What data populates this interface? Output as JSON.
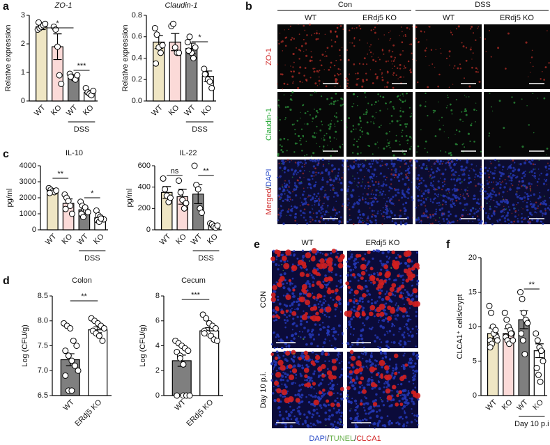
{
  "panel_labels": [
    "a",
    "b",
    "c",
    "d",
    "e",
    "f"
  ],
  "chart_data": [
    {
      "type": "bar",
      "title": "ZO-1",
      "ylabel": "Relative expression",
      "categories": [
        "WT",
        "KO",
        "WT",
        "KO"
      ],
      "group_label": "DSS",
      "colors": [
        "#efe6c4",
        "#fbdad8",
        "#7f7f7f",
        "#ffffff"
      ],
      "values": [
        2.6,
        1.9,
        0.85,
        0.3
      ],
      "errors": [
        0.1,
        0.45,
        0.07,
        0.07
      ],
      "points": [
        [
          2.5,
          2.55,
          2.6,
          2.65,
          2.7,
          2.75
        ],
        [
          2.6,
          2.5,
          1.9,
          0.9,
          0.6
        ],
        [
          0.95,
          0.85,
          0.8,
          0.75,
          0.9,
          0.85
        ],
        [
          0.45,
          0.3,
          0.25,
          0.2,
          0.35
        ]
      ],
      "annotations": [
        "*",
        "***"
      ],
      "ylim": [
        0,
        3
      ],
      "yticks": [
        0,
        1,
        2,
        3
      ]
    },
    {
      "type": "bar",
      "title": "Claudin-1",
      "ylabel": "Relative expression",
      "categories": [
        "WT",
        "KO",
        "WT",
        "KO"
      ],
      "group_label": "DSS",
      "colors": [
        "#efe6c4",
        "#fbdad8",
        "#7f7f7f",
        "#ffffff"
      ],
      "values": [
        0.55,
        0.55,
        0.49,
        0.23
      ],
      "errors": [
        0.06,
        0.08,
        0.05,
        0.05
      ],
      "points": [
        [
          0.68,
          0.62,
          0.5,
          0.45,
          0.52,
          0.35
        ],
        [
          0.7,
          0.72,
          0.5,
          0.45,
          0.45
        ],
        [
          0.55,
          0.6,
          0.45,
          0.4,
          0.5,
          0.47
        ],
        [
          0.3,
          0.25,
          0.2,
          0.18,
          0.12,
          0.25
        ]
      ],
      "annotations": [
        "*"
      ],
      "ylim": [
        0,
        0.8
      ],
      "yticks": [
        {
          "value": 0,
          "label": "0.0"
        },
        0.2,
        0.4,
        0.6,
        0.8
      ]
    },
    {
      "type": "bar",
      "title": "IL-10",
      "ylabel": "pg/ml",
      "categories": [
        "WT",
        "KO",
        "WT",
        "KO"
      ],
      "group_label": "DSS",
      "colors": [
        "#efe6c4",
        "#fbdad8",
        "#7f7f7f",
        "#ffffff"
      ],
      "values": [
        2450,
        1650,
        1250,
        750
      ],
      "errors": [
        120,
        280,
        160,
        90
      ],
      "points": [
        [
          2600,
          2500,
          2400,
          2350,
          2450,
          2300
        ],
        [
          2200,
          2000,
          1800,
          1500,
          1000,
          1300
        ],
        [
          1750,
          1500,
          1300,
          1200,
          1100,
          1000,
          800,
          1400
        ],
        [
          1200,
          900,
          800,
          700,
          650,
          600,
          500,
          700
        ]
      ],
      "annotations": [
        "**",
        "*"
      ],
      "ylim": [
        0,
        4000
      ],
      "yticks": [
        0,
        1000,
        2000,
        3000,
        4000
      ]
    },
    {
      "type": "bar",
      "title": "IL-22",
      "ylabel": "pg/ml",
      "categories": [
        "WT",
        "KO",
        "WT",
        "KO"
      ],
      "group_label": "DSS",
      "colors": [
        "#efe6c4",
        "#fbdad8",
        "#7f7f7f",
        "#ffffff"
      ],
      "values": [
        350,
        310,
        335,
        40
      ],
      "errors": [
        55,
        70,
        90,
        15
      ],
      "points": [
        [
          480,
          380,
          320,
          260,
          300
        ],
        [
          460,
          350,
          280,
          200,
          250
        ],
        [
          600,
          420,
          380,
          200,
          160
        ],
        [
          60,
          50,
          30,
          20,
          40
        ]
      ],
      "annotations": [
        "ns",
        "**"
      ],
      "ylim": [
        0,
        600
      ],
      "yticks": [
        0,
        200,
        400,
        600
      ]
    },
    {
      "type": "bar",
      "title": "Colon",
      "ylabel": "Log (CFU/g)",
      "categories": [
        "WT",
        "ERdj5 KO"
      ],
      "colors": [
        "#7f7f7f",
        "#ffffff"
      ],
      "values": [
        7.22,
        7.82
      ],
      "errors": [
        0.12,
        0.06
      ],
      "points": [
        [
          7.95,
          7.9,
          7.85,
          7.6,
          7.5,
          7.4,
          7.3,
          7.2,
          7.1,
          7.0,
          6.9,
          6.6,
          6.6
        ],
        [
          8.05,
          8.0,
          7.95,
          7.9,
          7.85,
          7.8,
          7.75,
          7.7,
          7.6
        ]
      ],
      "annotations": [
        "**"
      ],
      "ylim": [
        6.5,
        8.5
      ],
      "yticks": [
        6.5,
        {
          "value": 7,
          "label": "7.0"
        },
        7.5,
        {
          "value": 8,
          "label": "8.0"
        },
        8.5
      ]
    },
    {
      "type": "bar",
      "title": "Cecum",
      "ylabel": "Log (CFU/g)",
      "categories": [
        "WT",
        "ERdj5 KO"
      ],
      "colors": [
        "#7f7f7f",
        "#ffffff"
      ],
      "values": [
        2.8,
        5.2
      ],
      "errors": [
        0.45,
        0.25
      ],
      "points": [
        [
          4.4,
          4.2,
          4.0,
          3.8,
          3.6,
          3.5,
          3.2,
          0,
          0,
          0,
          0,
          3.0,
          2.5
        ],
        [
          6.5,
          6.2,
          5.8,
          5.6,
          5.4,
          5.2,
          5.0,
          4.8,
          4.5,
          4.4,
          5.0
        ]
      ],
      "annotations": [
        "***"
      ],
      "ylim": [
        0,
        8
      ],
      "yticks": [
        0,
        2,
        4,
        6,
        8
      ]
    },
    {
      "type": "bar",
      "ylabel": "CLCA1⁺ cells/crypt",
      "categories": [
        "WT",
        "KO",
        "WT",
        "KO"
      ],
      "group_label": "Day 10 p.i",
      "colors": [
        "#efe6c4",
        "#fbdad8",
        "#7f7f7f",
        "#ffffff"
      ],
      "values": [
        9,
        9,
        11,
        6.5
      ],
      "errors": [
        0.8,
        0.7,
        1.3,
        1.0
      ],
      "points": [
        [
          13,
          12,
          10,
          9,
          8.5,
          8,
          7.5,
          9,
          9.5,
          8,
          7
        ],
        [
          12,
          11,
          10,
          9.5,
          9,
          8.5,
          8,
          7.5,
          9,
          8
        ],
        [
          15,
          14,
          12,
          11,
          10.5,
          9,
          8,
          6
        ],
        [
          9,
          8,
          7,
          6.5,
          5,
          4,
          3,
          2
        ]
      ],
      "annotations": [
        "**"
      ],
      "ylim": [
        0,
        20
      ],
      "yticks": [
        0,
        5,
        10,
        15,
        20
      ]
    }
  ],
  "panel_b": {
    "groups": [
      "Con",
      "DSS"
    ],
    "columns": [
      "WT",
      "ERdj5 KO",
      "WT",
      "ERdj5 KO"
    ],
    "rows": [
      [
        "ZO-1"
      ],
      [
        "Claudin-1"
      ],
      [
        "Merged",
        "/",
        "DAPI"
      ]
    ]
  },
  "panel_e": {
    "columns": [
      "WT",
      "ERdj5 KO"
    ],
    "rows": [
      "CON",
      "Day 10 p.i."
    ],
    "legend": [
      "DAPI",
      "/",
      "TUNEL",
      "/",
      "CLCA1"
    ]
  }
}
